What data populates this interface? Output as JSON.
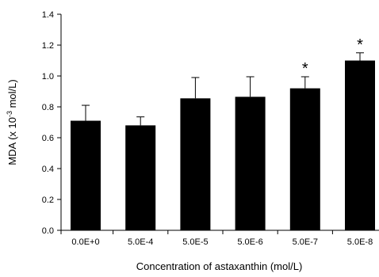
{
  "chart_data": {
    "type": "bar",
    "title": "",
    "categories": [
      "0.0E+0",
      "5.0E-4",
      "5.0E-5",
      "5.0E-6",
      "5.0E-7",
      "5.0E-8"
    ],
    "values": [
      0.71,
      0.68,
      0.855,
      0.865,
      0.92,
      1.1
    ],
    "error_plus": [
      0.1,
      0.055,
      0.135,
      0.13,
      0.075,
      0.05
    ],
    "significance": [
      "",
      "",
      "",
      "",
      "*",
      "*"
    ],
    "xlabel": "Concentration of astaxanthin (mol/L)",
    "ylabel": {
      "prefix": "MDA (x 10",
      "exponent": "-3",
      "suffix": " mol/L)"
    },
    "ylim": [
      0,
      1.4
    ],
    "yticks": [
      "0.0",
      "0.2",
      "0.4",
      "0.6",
      "0.8",
      "1.0",
      "1.2",
      "1.4"
    ],
    "grid": false,
    "bar_color": "#000000",
    "axis_color": "#000000"
  }
}
